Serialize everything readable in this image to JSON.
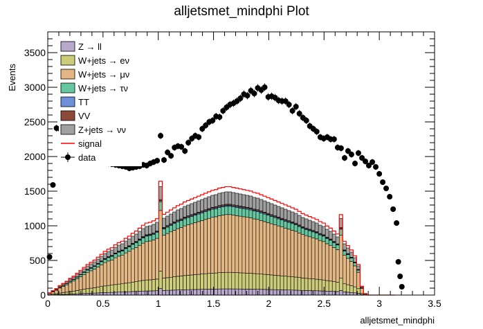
{
  "chart_data": {
    "type": "stacked-histogram",
    "title": "alljetsmet_mindphi Plot",
    "xlabel": "alljetsmet_mindphi",
    "ylabel": "Events",
    "xlim": [
      0,
      3.5
    ],
    "ylim": [
      0,
      3800
    ],
    "x_ticks": [
      0,
      0.5,
      1,
      1.5,
      2,
      2.5,
      3,
      3.5
    ],
    "x_tick_labels": [
      "0",
      "0.5",
      "1",
      "1.5",
      "2",
      "2.5",
      "3",
      "3.5"
    ],
    "y_ticks": [
      0,
      500,
      1000,
      1500,
      2000,
      2500,
      3000,
      3500
    ],
    "y_tick_labels": [
      "0",
      "500",
      "1000",
      "1500",
      "2000",
      "2500",
      "3000",
      "3500"
    ],
    "bin_width": 0.0314,
    "n_bins": 100,
    "total_background": [
      30,
      60,
      90,
      130,
      160,
      190,
      230,
      260,
      300,
      340,
      380,
      420,
      450,
      480,
      520,
      560,
      600,
      630,
      650,
      690,
      720,
      740,
      780,
      810,
      850,
      880,
      920,
      960,
      990,
      1000,
      1020,
      1050,
      1080,
      1110,
      1140,
      1170,
      1200,
      1230,
      1250,
      1280,
      1300,
      1320,
      1340,
      1360,
      1380,
      1400,
      1420,
      1440,
      1450,
      1470,
      1480,
      1490,
      1490,
      1480,
      1470,
      1460,
      1450,
      1440,
      1430,
      1410,
      1400,
      1380,
      1360,
      1340,
      1320,
      1300,
      1280,
      1260,
      1240,
      1220,
      1200,
      1180,
      1150,
      1120,
      1100,
      1080,
      1060,
      1040,
      1010,
      990,
      950,
      920,
      880,
      840,
      790,
      740,
      680,
      620,
      540,
      420,
      120,
      20,
      0,
      0,
      0,
      0,
      0,
      0,
      0,
      0
    ],
    "series": [
      {
        "name": "Z+jets → νν",
        "color": "#a0a0a0",
        "fraction": 0.12
      },
      {
        "name": "VV",
        "color": "#8b4a3a",
        "fraction": 0.01
      },
      {
        "name": "TT",
        "color": "#6f8fd8",
        "fraction": 0.01
      },
      {
        "name": "W+jets → τν",
        "color": "#66c7a0",
        "fraction": 0.08
      },
      {
        "name": "W+jets → μν",
        "color": "#e2b783",
        "fraction": 0.56
      },
      {
        "name": "W+jets → eν",
        "color": "#cccc7a",
        "fraction": 0.16
      },
      {
        "name": "Z → ll",
        "color": "#b8a8cc",
        "fraction": 0.06
      }
    ],
    "spike_bins": [
      {
        "bin": 32,
        "scale": 1.45
      },
      {
        "bin": 84,
        "scale": 1.4
      }
    ],
    "signal": {
      "name": "signal",
      "color": "#ff0000",
      "scale": 1.05
    },
    "data": {
      "name": "data",
      "x": [
        0.016,
        0.047,
        0.079,
        0.11,
        0.141,
        0.173,
        0.204,
        0.236,
        0.267,
        0.298,
        0.33,
        0.361,
        0.393,
        0.424,
        0.456,
        0.487,
        0.518,
        0.55,
        0.581,
        0.613,
        0.644,
        0.675,
        0.707,
        0.738,
        0.77,
        0.801,
        0.832,
        0.864,
        0.895,
        0.927,
        0.958,
        0.99,
        1.021,
        1.052,
        1.084,
        1.115,
        1.147,
        1.178,
        1.209,
        1.241,
        1.272,
        1.304,
        1.335,
        1.366,
        1.398,
        1.429,
        1.461,
        1.492,
        1.523,
        1.555,
        1.586,
        1.618,
        1.649,
        1.681,
        1.712,
        1.743,
        1.775,
        1.806,
        1.838,
        1.869,
        1.9,
        1.932,
        1.963,
        1.995,
        2.026,
        2.057,
        2.089,
        2.12,
        2.152,
        2.183,
        2.214,
        2.246,
        2.277,
        2.309,
        2.34,
        2.371,
        2.403,
        2.434,
        2.466,
        2.497,
        2.529,
        2.56,
        2.591,
        2.623,
        2.654,
        2.686,
        2.717,
        2.748,
        2.78,
        2.811,
        2.843,
        2.874,
        2.905,
        2.937,
        2.968,
        3.0,
        3.031,
        3.062,
        3.094,
        3.125
      ],
      "y": [
        550,
        1590,
        2410,
        2400,
        2300,
        2250,
        2200,
        2150,
        2100,
        2080,
        2050,
        2020,
        2000,
        1980,
        1960,
        1940,
        1920,
        1900,
        1890,
        1880,
        1870,
        1860,
        1850,
        1830,
        1840,
        1850,
        1860,
        1880,
        1870,
        1900,
        1920,
        1940,
        2300,
        1950,
        2060,
        2010,
        2130,
        2150,
        2140,
        2080,
        2200,
        2260,
        2300,
        2280,
        2400,
        2450,
        2500,
        2520,
        2580,
        2570,
        2660,
        2710,
        2750,
        2770,
        2800,
        2840,
        2900,
        2880,
        2950,
        2910,
        2990,
        2960,
        3000,
        2860,
        2870,
        2850,
        2810,
        2800,
        2800,
        2750,
        2660,
        2720,
        2620,
        2560,
        2520,
        2440,
        2400,
        2360,
        2280,
        2260,
        2280,
        2250,
        2250,
        2130,
        2120,
        1980,
        2080,
        2030,
        1900,
        2050,
        1980,
        1930,
        1870,
        1920,
        1850,
        1750,
        1630,
        1540,
        1420,
        1240
      ],
      "y_extra": [
        1040,
        480,
        270,
        120
      ],
      "x_extra": [
        3.156,
        3.172,
        3.188,
        3.204
      ]
    },
    "legend": [
      {
        "label": "Z → ll",
        "kind": "box",
        "color": "#b8a8cc"
      },
      {
        "label": "W+jets → eν",
        "kind": "box",
        "color": "#cccc7a"
      },
      {
        "label": "W+jets → μν",
        "kind": "box",
        "color": "#e2b783"
      },
      {
        "label": "W+jets → τν",
        "kind": "box",
        "color": "#66c7a0"
      },
      {
        "label": "TT",
        "kind": "box",
        "color": "#6f8fd8"
      },
      {
        "label": "VV",
        "kind": "box",
        "color": "#8b4a3a"
      },
      {
        "label": "Z+jets → νν",
        "kind": "box",
        "color": "#a0a0a0"
      },
      {
        "label": "signal",
        "kind": "line",
        "color": "#ff0000"
      },
      {
        "label": "data",
        "kind": "marker",
        "color": "#000000"
      }
    ],
    "legend_position": "top-left"
  }
}
